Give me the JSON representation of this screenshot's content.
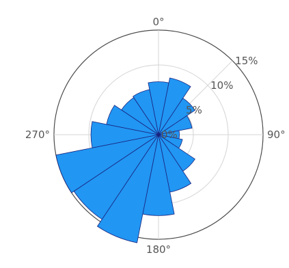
{
  "chart_data": {
    "type": "bar",
    "subtype": "polar-bar (wind rose)",
    "title": "",
    "angular_axis": {
      "direction": "clockwise",
      "zero_at": "top",
      "tick_labels": [
        "0°",
        "90°",
        "180°",
        "270°"
      ]
    },
    "radial_axis": {
      "range": [
        0,
        15
      ],
      "unit": "%",
      "tick_values": [
        0,
        5,
        10,
        15
      ],
      "tick_labels": [
        "0%",
        "5%",
        "10%",
        "15%"
      ],
      "angle_deg": 45
    },
    "grid": true,
    "bar_color": "#2196f3",
    "bar_edge_color": "#1a237e",
    "sectors_deg": [
      0,
      22.5,
      45,
      67.5,
      90,
      112.5,
      135,
      157.5,
      180,
      202.5,
      225,
      247.5,
      270,
      292.5,
      315,
      337.5
    ],
    "values": [
      7.6,
      8.3,
      6.3,
      4.9,
      3.0,
      3.5,
      6.3,
      8.4,
      11.6,
      15.8,
      14.6,
      15.0,
      9.7,
      7.6,
      6.4,
      6.6
    ]
  }
}
